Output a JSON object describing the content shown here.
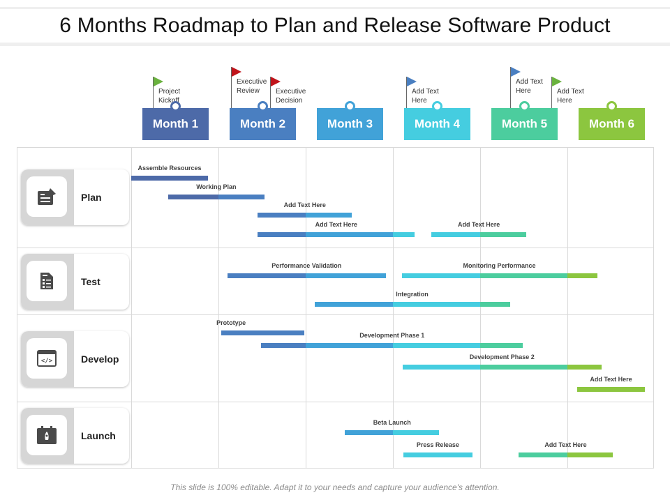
{
  "title": "6 Months Roadmap to Plan and Release Software Product",
  "footer": "This slide is 100% editable. Adapt it to your needs and capture your audience's attention.",
  "months": [
    {
      "label": "Month 1",
      "color": "#4d6aa8"
    },
    {
      "label": "Month 2",
      "color": "#4a7fc1"
    },
    {
      "label": "Month 3",
      "color": "#41a2d8"
    },
    {
      "label": "Month 4",
      "color": "#45cde0"
    },
    {
      "label": "Month 5",
      "color": "#4ccd9e"
    },
    {
      "label": "Month 6",
      "color": "#8cc63f"
    }
  ],
  "milestones": [
    {
      "text": "Project\nKickoff",
      "flag_color": "#6ab23e"
    },
    {
      "text": "Executive\nReview",
      "flag_color": "#c0141b"
    },
    {
      "text": "Executive\nDecision",
      "flag_color": "#c0141b"
    },
    {
      "text": "Add Text\nHere",
      "flag_color": "#4a7fc1"
    },
    {
      "text": "Add Text\nHere",
      "flag_color": "#4a7fc1"
    },
    {
      "text": "Add Text\nHere",
      "flag_color": "#6ab23e"
    }
  ],
  "categories": [
    {
      "label": "Plan",
      "icon": "plan-icon"
    },
    {
      "label": "Test",
      "icon": "test-document-icon"
    },
    {
      "label": "Develop",
      "icon": "code-window-icon"
    },
    {
      "label": "Launch",
      "icon": "rocket-calendar-icon"
    }
  ],
  "tasks": [
    {
      "label": "Assemble Resources",
      "category": "Plan",
      "start_month": 1.0,
      "end_month": 1.88
    },
    {
      "label": "Working Plan",
      "category": "Plan",
      "start_month": 1.42,
      "end_month": 2.53
    },
    {
      "label": "Add Text Here",
      "category": "Plan",
      "start_month": 2.45,
      "end_month": 3.53
    },
    {
      "label": "Add Text Here",
      "category": "Plan",
      "start_month": 2.45,
      "end_month": 4.25
    },
    {
      "label": "Add Text Here",
      "category": "Plan",
      "start_month": 4.44,
      "end_month": 5.53
    },
    {
      "label": "Performance Validation",
      "category": "Test",
      "start_month": 2.1,
      "end_month": 3.92
    },
    {
      "label": "Monitoring Performance",
      "category": "Test",
      "start_month": 4.1,
      "end_month": 6.34
    },
    {
      "label": "Integration",
      "category": "Test",
      "start_month": 3.1,
      "end_month": 5.34
    },
    {
      "label": "Prototype",
      "category": "Develop",
      "start_month": 2.03,
      "end_month": 2.98
    },
    {
      "label": "Development Phase 1",
      "category": "Develop",
      "start_month": 2.49,
      "end_month": 5.49
    },
    {
      "label": "Development Phase 2",
      "category": "Develop",
      "start_month": 4.11,
      "end_month": 6.39
    },
    {
      "label": "Add Text Here",
      "category": "Develop",
      "start_month": 6.11,
      "end_month": 6.89
    },
    {
      "label": "Beta Launch",
      "category": "Launch",
      "start_month": 3.45,
      "end_month": 4.53
    },
    {
      "label": "Press Release",
      "category": "Launch",
      "start_month": 4.12,
      "end_month": 4.91
    },
    {
      "label": "Add Text Here",
      "category": "Launch",
      "start_month": 5.44,
      "end_month": 6.52
    }
  ]
}
